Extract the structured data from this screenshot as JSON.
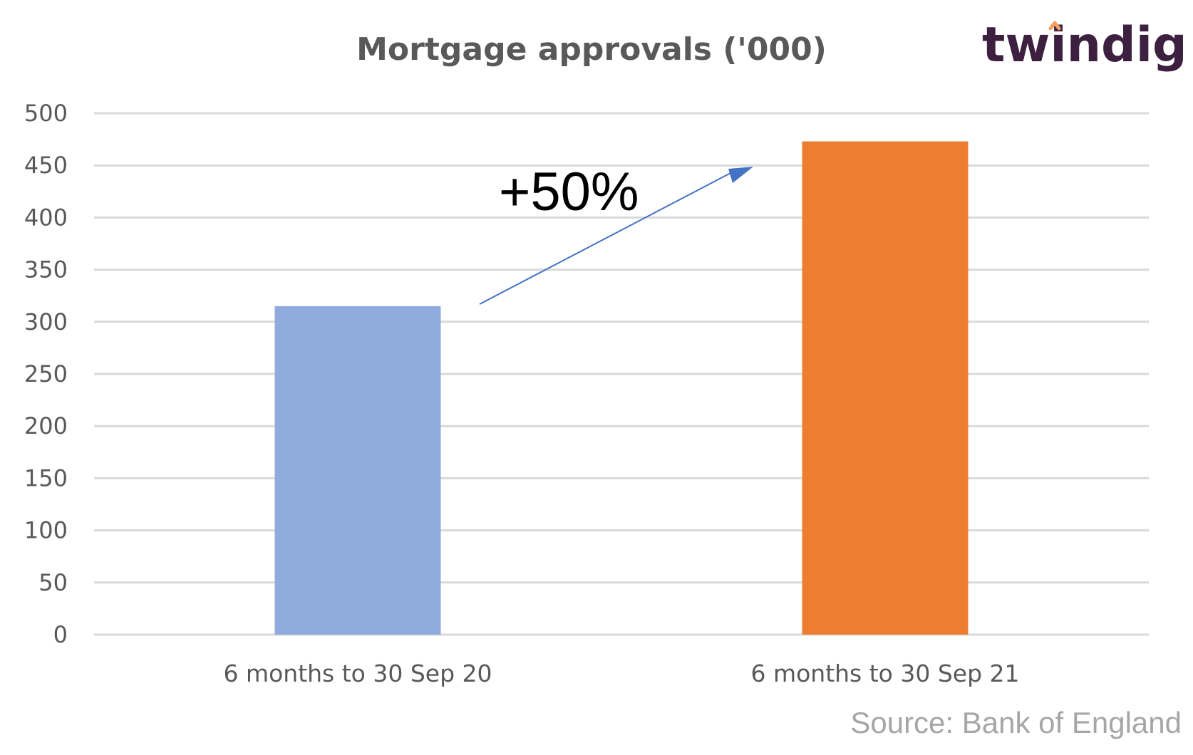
{
  "chart_data": {
    "type": "bar",
    "title": "Mortgage approvals ('000)",
    "categories": [
      "6 months to 30 Sep 20",
      "6 months to 30 Sep 21"
    ],
    "values": [
      315,
      473
    ],
    "bar_colors": [
      "#8faadc",
      "#ed7d31"
    ],
    "ylim": [
      0,
      500
    ],
    "yticks": [
      0,
      50,
      100,
      150,
      200,
      250,
      300,
      350,
      400,
      450,
      500
    ],
    "grid": true,
    "annotation": "+50%",
    "annotation_arrow_color": "#4472c4"
  },
  "source": "Source: Bank of England",
  "logo": {
    "text": "twindig",
    "text_color": "#3d1f40",
    "accent_color": "#f4a261"
  }
}
